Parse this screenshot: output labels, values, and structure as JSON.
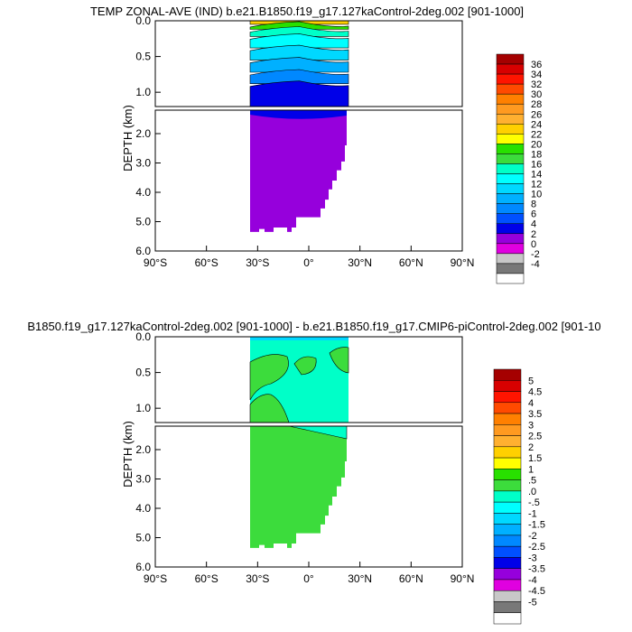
{
  "chart_data": [
    {
      "type": "heatmap",
      "title": "TEMP ZONAL-AVE (IND) b.e21.B1850.f19_g17.127kaControl-2deg.002 [901-1000]",
      "ylabel": "DEPTH (km)",
      "x_ticks": [
        "90°S",
        "60°S",
        "30°S",
        "0°",
        "30°N",
        "60°N",
        "90°N"
      ],
      "y_ticks_upper": [
        "0.0",
        "0.5",
        "1.0"
      ],
      "y_ticks_lower": [
        "2.0",
        "3.0",
        "4.0",
        "5.0",
        "6.0"
      ],
      "xlim": [
        -90,
        90
      ],
      "ylim_upper": [
        0,
        1.2
      ],
      "ylim_lower": [
        1.2,
        6.0
      ],
      "colorbar": {
        "labels": [
          "36",
          "34",
          "32",
          "30",
          "28",
          "26",
          "24",
          "22",
          "20",
          "18",
          "16",
          "14",
          "12",
          "10",
          "8",
          "6",
          "4",
          "2",
          "0",
          "-2",
          "-4"
        ],
        "colors": [
          "#a50000",
          "#d80000",
          "#ff1400",
          "#ff4a00",
          "#ff8000",
          "#ff9a20",
          "#ffb030",
          "#ffd000",
          "#ffff00",
          "#28e000",
          "#3cdc3c",
          "#00ffc8",
          "#00ffff",
          "#00d8ff",
          "#00b0ff",
          "#0088ff",
          "#0050ff",
          "#0000e8",
          "#9600dc",
          "#e000e0",
          "#c8c8c8",
          "#787878",
          "#ffffff"
        ]
      },
      "bands_upper": [
        {
          "top": 0.0,
          "color": "#ffd000"
        },
        {
          "top": 0.05,
          "color": "#28e000"
        },
        {
          "top": 0.12,
          "color": "#00ffc8"
        },
        {
          "top": 0.22,
          "color": "#00ffff"
        },
        {
          "top": 0.38,
          "color": "#00d8ff"
        },
        {
          "top": 0.55,
          "color": "#00b0ff"
        },
        {
          "top": 0.72,
          "color": "#0088ff"
        },
        {
          "top": 0.88,
          "color": "#0000e8"
        }
      ],
      "deep_color": "#9600dc"
    },
    {
      "type": "heatmap",
      "title": "B1850.f19_g17.127kaControl-2deg.002 [901-1000] - b.e21.B1850.f19_g17.CMIP6-piControl-2deg.002 [901-10",
      "ylabel": "DEPTH (km)",
      "x_ticks": [
        "90°S",
        "60°S",
        "30°S",
        "0°",
        "30°N",
        "60°N",
        "90°N"
      ],
      "y_ticks_upper": [
        "0.0",
        "0.5",
        "1.0"
      ],
      "y_ticks_lower": [
        "2.0",
        "3.0",
        "4.0",
        "5.0",
        "6.0"
      ],
      "xlim": [
        -90,
        90
      ],
      "ylim_upper": [
        0,
        1.2
      ],
      "ylim_lower": [
        1.2,
        6.0
      ],
      "colorbar": {
        "labels": [
          "5",
          "4.5",
          "4",
          "3.5",
          "3",
          "2.5",
          "2",
          "1.5",
          "1",
          ".5",
          ".0",
          "-.5",
          "-1",
          "-1.5",
          "-2",
          "-2.5",
          "-3",
          "-3.5",
          "-4",
          "-4.5",
          "-5"
        ],
        "colors": [
          "#a50000",
          "#d80000",
          "#ff1400",
          "#ff4a00",
          "#ff8000",
          "#ff9a20",
          "#ffb030",
          "#ffd000",
          "#ffff00",
          "#28e000",
          "#3cdc3c",
          "#00ffc8",
          "#00ffff",
          "#00d8ff",
          "#00b0ff",
          "#0088ff",
          "#0050ff",
          "#0000e8",
          "#9600dc",
          "#e000e0",
          "#c8c8c8",
          "#787878",
          "#ffffff"
        ]
      },
      "upper_main_color": "#00ffc8",
      "deep_color": "#3cdc3c"
    }
  ]
}
